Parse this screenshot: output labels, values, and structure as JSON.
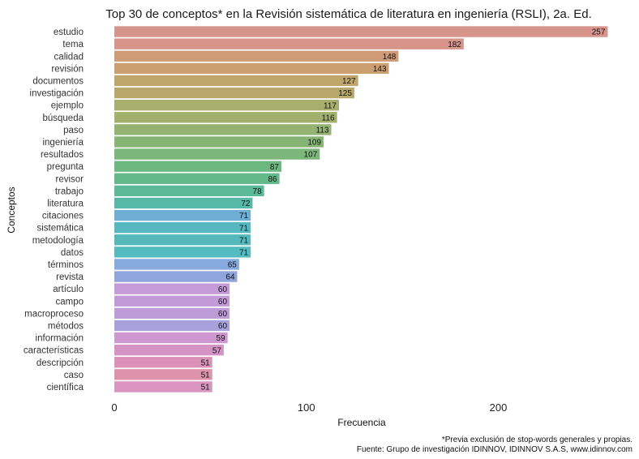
{
  "chart_data": {
    "type": "bar",
    "orientation": "horizontal",
    "title": "Top 30 de conceptos* en la Revisión sistemática de literatura en ingeniería (RSLI), 2a. Ed.",
    "xlabel": "Frecuencia",
    "ylabel": "Conceptos",
    "xlim": [
      0,
      260
    ],
    "xticks": [
      {
        "value": 0,
        "label": "0"
      },
      {
        "value": 100,
        "label": "100"
      },
      {
        "value": 200,
        "label": "200"
      }
    ],
    "grid": false,
    "legend": "none",
    "bars": [
      {
        "category": "estudio",
        "value": 257,
        "label": "257",
        "color": "#d7948c"
      },
      {
        "category": "tema",
        "value": 182,
        "label": "182",
        "color": "#d7958a"
      },
      {
        "category": "calidad",
        "value": 148,
        "label": "148",
        "color": "#cf9c77"
      },
      {
        "category": "revisión",
        "value": 143,
        "label": "143",
        "color": "#cc9f71"
      },
      {
        "category": "documentos",
        "value": 127,
        "label": "127",
        "color": "#bfa66b"
      },
      {
        "category": "investigación",
        "value": 125,
        "label": "125",
        "color": "#b8a86b"
      },
      {
        "category": "ejemplo",
        "value": 117,
        "label": "117",
        "color": "#a8ae6b"
      },
      {
        "category": "búsqueda",
        "value": 116,
        "label": "116",
        "color": "#a1b06d"
      },
      {
        "category": "paso",
        "value": 113,
        "label": "113",
        "color": "#94b270"
      },
      {
        "category": "ingeniería",
        "value": 109,
        "label": "109",
        "color": "#86b474"
      },
      {
        "category": "resultados",
        "value": 107,
        "label": "107",
        "color": "#7cb67a"
      },
      {
        "category": "pregunta",
        "value": 87,
        "label": "87",
        "color": "#6db880"
      },
      {
        "category": "revisor",
        "value": 86,
        "label": "86",
        "color": "#64b98a"
      },
      {
        "category": "trabajo",
        "value": 78,
        "label": "78",
        "color": "#5dba98"
      },
      {
        "category": "literatura",
        "value": 72,
        "label": "72",
        "color": "#56b9a7"
      },
      {
        "category": "citaciones",
        "value": 71,
        "label": "71",
        "color": "#6eaed4"
      },
      {
        "category": "sistemática",
        "value": 71,
        "label": "71",
        "color": "#56b7c0"
      },
      {
        "category": "metodología",
        "value": 71,
        "label": "71",
        "color": "#55b9bc"
      },
      {
        "category": "datos",
        "value": 71,
        "label": "71",
        "color": "#54bbc0"
      },
      {
        "category": "términos",
        "value": 65,
        "label": "65",
        "color": "#87aade"
      },
      {
        "category": "revista",
        "value": 64,
        "label": "64",
        "color": "#8fa5dc"
      },
      {
        "category": "artículo",
        "value": 60,
        "label": "60",
        "color": "#c49bd8"
      },
      {
        "category": "campo",
        "value": 60,
        "label": "60",
        "color": "#c29ad8"
      },
      {
        "category": "macroproceso",
        "value": 60,
        "label": "60",
        "color": "#bd9cd8"
      },
      {
        "category": "métodos",
        "value": 60,
        "label": "60",
        "color": "#a8a2dc"
      },
      {
        "category": "información",
        "value": 59,
        "label": "59",
        "color": "#cf97cf"
      },
      {
        "category": "características",
        "value": 57,
        "label": "57",
        "color": "#d694c6"
      },
      {
        "category": "descripción",
        "value": 51,
        "label": "51",
        "color": "#dc92b8"
      },
      {
        "category": "caso",
        "value": 51,
        "label": "51",
        "color": "#de92ac"
      },
      {
        "category": "científica",
        "value": 51,
        "label": "51",
        "color": "#d994c0"
      }
    ],
    "caption": [
      "*Previa exclusión de stop-words generales y propias.",
      "Fuente: Grupo de investigación IDINNOV, IDINNOV S.A.S, www.idinnov.com"
    ]
  }
}
